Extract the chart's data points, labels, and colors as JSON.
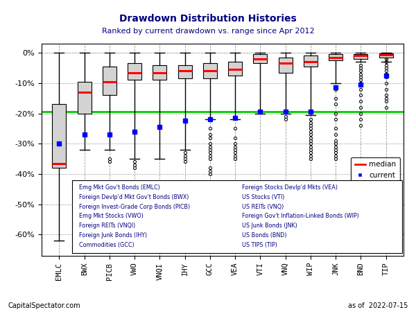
{
  "title": "Drawdown Distribution Histories",
  "subtitle": "Ranked by current drawdown vs. range since Apr 2012",
  "footer_left": "CapitalSpectator.com",
  "footer_right": "as of  2022-07-15",
  "gmilf": -19.5,
  "tickers": [
    "EMLC",
    "BWX",
    "PICB",
    "VWO",
    "VNQI",
    "IHY",
    "GCC",
    "VEA",
    "VTI",
    "VNQ",
    "WIP",
    "JNK",
    "BND",
    "TIP"
  ],
  "box_q1": [
    -38.0,
    -20.0,
    -14.0,
    -9.0,
    -9.0,
    -8.5,
    -8.5,
    -7.5,
    -3.5,
    -6.5,
    -4.5,
    -2.5,
    -2.0,
    -1.5
  ],
  "box_q3": [
    -17.0,
    -9.5,
    -4.5,
    -3.5,
    -4.0,
    -4.0,
    -3.5,
    -3.0,
    -0.5,
    -1.5,
    -1.0,
    -0.5,
    -0.5,
    -0.2
  ],
  "box_median": [
    -36.5,
    -13.0,
    -9.5,
    -6.5,
    -6.5,
    -6.0,
    -6.0,
    -5.5,
    -2.0,
    -3.5,
    -3.0,
    -1.5,
    -1.0,
    -0.7
  ],
  "whisker_lo": [
    -62.0,
    -32.0,
    -32.0,
    -35.0,
    -35.0,
    -32.0,
    -22.0,
    -22.0,
    -20.0,
    -20.0,
    -20.5,
    -10.0,
    -3.0,
    -3.0
  ],
  "whisker_hi": [
    0.0,
    0.0,
    0.0,
    0.0,
    0.0,
    0.0,
    0.0,
    0.0,
    0.0,
    0.0,
    0.0,
    0.0,
    0.0,
    0.0
  ],
  "outliers": [
    [],
    [],
    [
      -35.0,
      -36.0
    ],
    [
      -36.0,
      -37.0,
      -38.0
    ],
    [],
    [
      -33.0,
      -34.0,
      -35.0,
      -36.0
    ],
    [
      -25.0,
      -27.0,
      -28.0,
      -30.0,
      -31.0,
      -32.0,
      -33.0,
      -34.0,
      -35.0,
      -38.0,
      -39.0,
      -40.0
    ],
    [
      -21.5,
      -25.0,
      -28.0,
      -30.0,
      -31.0,
      -32.0,
      -33.0,
      -34.0,
      -35.0
    ],
    [],
    [
      -21.0,
      -22.0
    ],
    [
      -22.0,
      -23.0,
      -24.0,
      -25.0,
      -26.0,
      -27.0,
      -28.0,
      -29.0,
      -30.0,
      -31.0,
      -32.0,
      -33.0,
      -34.0,
      -35.0
    ],
    [
      -12.0,
      -15.0,
      -17.0,
      -20.0,
      -22.0,
      -25.0,
      -27.0,
      -29.0,
      -30.0,
      -31.0,
      -32.0,
      -33.0,
      -34.0,
      -35.0
    ],
    [
      -4.0,
      -5.0,
      -6.0,
      -7.0,
      -8.0,
      -9.0,
      -10.0,
      -12.0,
      -14.0,
      -16.0,
      -18.0,
      -20.0,
      -22.0,
      -24.0
    ],
    [
      -2.0,
      -3.0,
      -4.0,
      -5.0,
      -6.0,
      -7.0,
      -8.0,
      -10.0,
      -12.0,
      -14.0,
      -15.0,
      -16.0,
      -18.0
    ]
  ],
  "current": [
    -30.0,
    -27.0,
    -27.0,
    -26.0,
    -24.5,
    -22.5,
    -22.0,
    -21.5,
    -19.5,
    -19.5,
    -19.5,
    -11.5,
    -10.5,
    -7.5
  ],
  "ylim": [
    -67,
    3
  ],
  "yticks": [
    0,
    -10,
    -20,
    -30,
    -40,
    -50,
    -60
  ],
  "yticklabels": [
    "0%",
    "-10%",
    "-20%",
    "-30%",
    "-40%",
    "-50%",
    "-60%"
  ],
  "legend_texts_col1": [
    "Emg Mkt Gov't Bonds (EMLC)",
    "Foreign Devlp'd Mkt Gov't Bonds (BWX)",
    "Foreign Invest-Grade Corp Bonds (PICB)",
    "Emg Mkt Stocks (VWO)",
    "Foreign REITs (VNQI)",
    "Foreign Junk Bonds (IHY)",
    "Commodities (GCC)"
  ],
  "legend_texts_col2": [
    "Foreign Stocks Devlp'd Mkts (VEA)",
    "US Stocks (VTI)",
    "US REITs (VNQ)",
    "Foreign Gov't Inflation-Linked Bonds (WIP)",
    "US Junk Bonds (JNK)",
    "US Bonds (BND)",
    "US TIPS (TIP)"
  ],
  "box_color": "#d3d3d3",
  "median_color": "#ff0000",
  "current_color": "#0000ff",
  "gmilf_color": "#00cc00",
  "whisker_color": "#000000",
  "outlier_color": "#000000",
  "bg_color": "#ffffff",
  "title_color": "#000080",
  "subtitle_color": "#000080",
  "legend_text_color": "#000080"
}
